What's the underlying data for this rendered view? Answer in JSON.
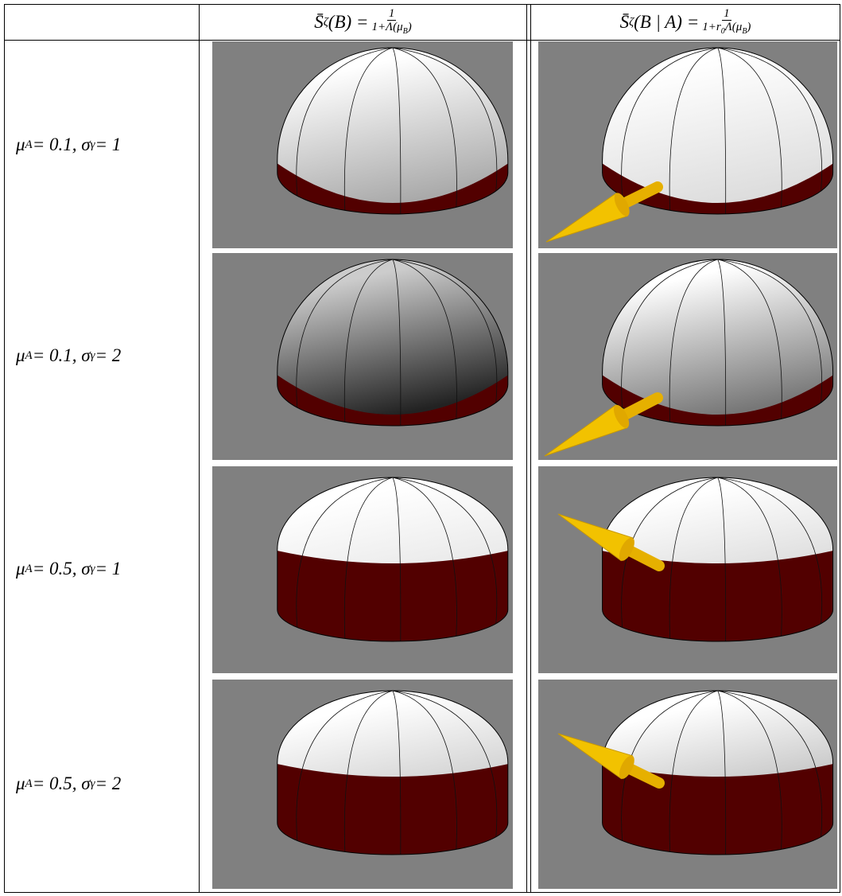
{
  "table": {
    "header": [
      {
        "lhs": [
          {
            "t": "S̄"
          },
          {
            "sub": "ζ"
          },
          {
            "t": "(B) = "
          }
        ],
        "num": "1",
        "den": [
          {
            "t": "1+Λ(μ"
          },
          {
            "sub": "B"
          },
          {
            "t": ")"
          }
        ]
      },
      {
        "lhs": [
          {
            "t": "S̄"
          },
          {
            "sub": "ζ"
          },
          {
            "t": "(B | A) = "
          }
        ],
        "num": "1",
        "den": [
          {
            "t": "1+r"
          },
          {
            "sub": "0"
          },
          {
            "t": "Λ(μ"
          },
          {
            "sub": "B"
          },
          {
            "t": ")"
          }
        ]
      }
    ],
    "rows": [
      {
        "label": [
          {
            "t": "μ"
          },
          {
            "sub": "A"
          },
          {
            "t": " = 0.1, σ"
          },
          {
            "sub": "γ"
          },
          {
            "t": " = 1"
          }
        ]
      },
      {
        "label": [
          {
            "t": "μ"
          },
          {
            "sub": "A"
          },
          {
            "t": " = 0.1, σ"
          },
          {
            "sub": "γ"
          },
          {
            "t": " = 2"
          }
        ]
      },
      {
        "label": [
          {
            "t": "μ"
          },
          {
            "sub": "A"
          },
          {
            "t": " = 0.5, σ"
          },
          {
            "sub": "γ"
          },
          {
            "t": " = 1"
          }
        ]
      },
      {
        "label": [
          {
            "t": "μ"
          },
          {
            "sub": "A"
          },
          {
            "t": " = 0.5, σ"
          },
          {
            "sub": "γ"
          },
          {
            "t": " = 2"
          }
        ]
      }
    ]
  }
}
